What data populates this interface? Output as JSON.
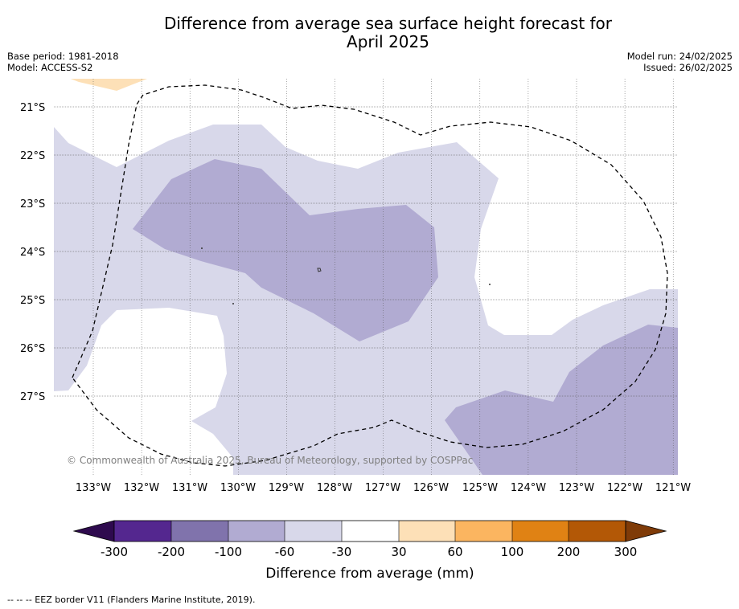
{
  "header": {
    "title_line1": "Difference from average sea surface height forecast for",
    "title_line2": "April 2025",
    "base_period": "Base period: 1981-2018",
    "model": "Model: ACCESS-S2",
    "model_run": "Model run: 24/02/2025",
    "issued": "Issued: 26/02/2025"
  },
  "map": {
    "lat_labels": [
      "21°S",
      "22°S",
      "23°S",
      "24°S",
      "25°S",
      "26°S",
      "27°S"
    ],
    "lon_labels": [
      "133°W",
      "132°W",
      "131°W",
      "130°W",
      "129°W",
      "128°W",
      "127°W",
      "126°W",
      "125°W",
      "124°W",
      "123°W",
      "122°W",
      "121°W"
    ],
    "copyright": "© Commonwealth of Australia 2025, Bureau of Meteorology, supported by COSPPac",
    "fill_colors": {
      "light_orange": "#fde0b7",
      "lightest_purple": "#d8d8ea",
      "light_purple": "#b1abd2"
    }
  },
  "colorbar": {
    "title": "Difference from average (mm)",
    "tick_labels": [
      "-300",
      "-200",
      "-100",
      "-60",
      "-30",
      "30",
      "60",
      "100",
      "200",
      "300"
    ],
    "colors": [
      "#2e0a4e",
      "#54278f",
      "#8073ac",
      "#b1abd2",
      "#d8d8ea",
      "#ffffff",
      "#fde0b7",
      "#fbb560",
      "#e08214",
      "#b35806",
      "#7f3b08"
    ]
  },
  "footnote": "--  --  -- EEZ border V11 (Flanders Marine Institute, 2019)."
}
